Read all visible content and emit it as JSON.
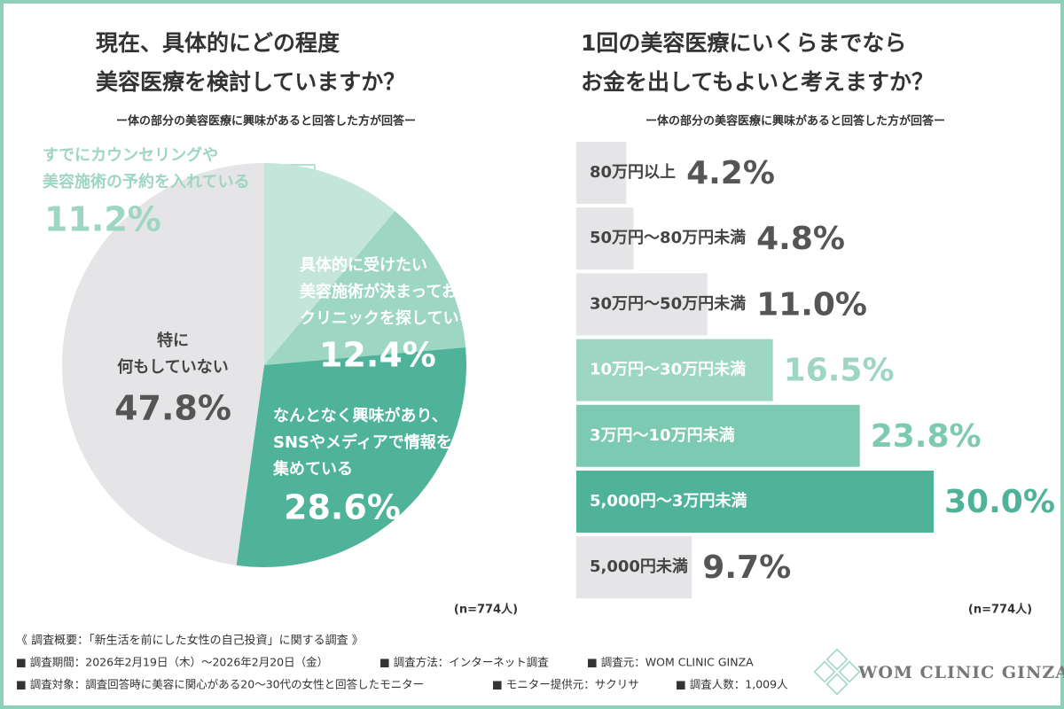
{
  "chart_data": [
    {
      "type": "pie",
      "title": [
        "現在、具体的にどの程度",
        "美容医療を検討していますか？"
      ],
      "subtitle": "ー体の部分の美容医療に興味があると回答した方が回答ー",
      "categories": [
        [
          "すでにカウンセリングや",
          "美容施術の予約を入れている"
        ],
        [
          "具体的に受けたい",
          "美容施術が決まっており、",
          "クリニックを探している"
        ],
        [
          "なんとなく興味があり、",
          "SNSやメディアで情報を",
          "集めている"
        ],
        [
          "特に",
          "何もしていない"
        ]
      ],
      "values": [
        11.2,
        12.4,
        28.6,
        47.8
      ],
      "value_labels": [
        "11.2%",
        "12.4%",
        "28.6%",
        "47.8%"
      ],
      "colors": [
        "#c4e6da",
        "#9dd6c2",
        "#4fb39a",
        "#e5e4e7"
      ],
      "note": "(n=774人)"
    },
    {
      "type": "bar",
      "title": [
        "1回の美容医療にいくらまでなら",
        "お金を出してもよいと考えますか？"
      ],
      "subtitle": "ー体の部分の美容医療に興味があると回答した方が回答ー",
      "categories": [
        "80万円以上",
        "50万円～80万円未満",
        "30万円～50万円未満",
        "10万円～30万円未満",
        "3万円～10万円未満",
        "5,000円～3万円未満",
        "5,000円未満"
      ],
      "values": [
        4.2,
        4.8,
        11.0,
        16.5,
        23.8,
        30.0,
        9.7
      ],
      "value_labels": [
        "4.2%",
        "4.8%",
        "11.0%",
        "16.5%",
        "23.8%",
        "30.0%",
        "9.7%"
      ],
      "colors": [
        "#e5e4e7",
        "#e5e4e7",
        "#e5e4e7",
        "#9dd6c2",
        "#7dcab2",
        "#4fb39a",
        "#e5e4e7"
      ],
      "note": "(n=774人)"
    }
  ],
  "footer": {
    "heading": "《 調査概要：「新生活を前にした女性の自己投資」に関する調査 》",
    "items": [
      [
        "■ 調査期間：2026年2月19日（木）～2026年2月20日（金）",
        "■ 調査方法：インターネット調査",
        "■ 調査元：WOM CLINIC GINZA"
      ],
      [
        "■ 調査対象：調査回答時に美容に関心がある20～30代の女性と回答したモニター",
        "■ モニター提供元：サクリサ",
        "■ 調査人数：1,009人"
      ]
    ],
    "logo": "WOM CLINIC GINZA"
  }
}
